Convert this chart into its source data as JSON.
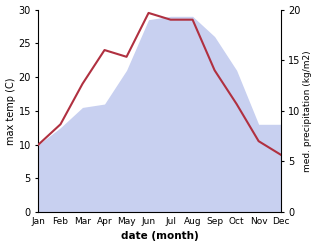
{
  "months": [
    "Jan",
    "Feb",
    "Mar",
    "Apr",
    "May",
    "Jun",
    "Jul",
    "Aug",
    "Sep",
    "Oct",
    "Nov",
    "Dec"
  ],
  "temperature": [
    10,
    13,
    19,
    24,
    23,
    29.5,
    28.5,
    28.5,
    21,
    16,
    10.5,
    8.5
  ],
  "precipitation_left_scale": [
    10,
    12.5,
    15.5,
    16,
    21,
    28.5,
    29,
    29,
    26,
    21,
    13,
    13
  ],
  "temp_color": "#b03040",
  "precip_fill": "#c8d0f0",
  "ylabel_left": "max temp (C)",
  "ylabel_right": "med. precipitation (kg/m2)",
  "xlabel": "date (month)",
  "ylim_left": [
    0,
    30
  ],
  "ylim_right": [
    0,
    20
  ],
  "left_ticks": [
    0,
    5,
    10,
    15,
    20,
    25,
    30
  ],
  "right_ticks": [
    0,
    5,
    10,
    15,
    20
  ],
  "background_color": "#ffffff"
}
